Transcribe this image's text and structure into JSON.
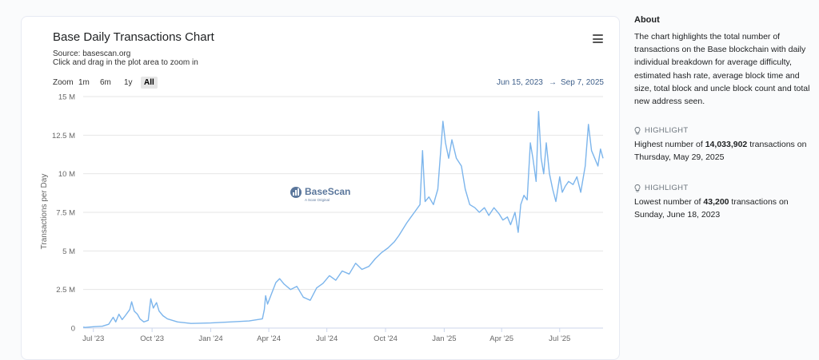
{
  "chart_data": {
    "type": "line",
    "title": "Base Daily Transactions Chart",
    "subtitle_source": "Source: basescan.org",
    "subtitle_hint": "Click and drag in the plot area to zoom in",
    "ylabel": "Transactions per Day",
    "xlabel": "",
    "ylim": [
      0,
      15000000
    ],
    "y_ticks": [
      {
        "value": 0,
        "label": "0"
      },
      {
        "value": 2500000,
        "label": "2.5 M"
      },
      {
        "value": 5000000,
        "label": "5 M"
      },
      {
        "value": 7500000,
        "label": "7.5 M"
      },
      {
        "value": 10000000,
        "label": "10 M"
      },
      {
        "value": 12500000,
        "label": "12.5 M"
      },
      {
        "value": 15000000,
        "label": "15 M"
      }
    ],
    "xlim": [
      "2023-06-15",
      "2025-09-07"
    ],
    "x_ticks": [
      {
        "date": "2023-07-01",
        "label": "Jul '23"
      },
      {
        "date": "2023-10-01",
        "label": "Oct '23"
      },
      {
        "date": "2024-01-01",
        "label": "Jan '24"
      },
      {
        "date": "2024-04-01",
        "label": "Apr '24"
      },
      {
        "date": "2024-07-01",
        "label": "Jul '24"
      },
      {
        "date": "2024-10-01",
        "label": "Oct '24"
      },
      {
        "date": "2025-01-01",
        "label": "Jan '25"
      },
      {
        "date": "2025-04-01",
        "label": "Apr '25"
      },
      {
        "date": "2025-07-01",
        "label": "Jul '25"
      }
    ],
    "grid": true,
    "legend": "none",
    "series": [
      {
        "color": "#7cb5ec",
        "points": [
          [
            "2023-06-15",
            60000
          ],
          [
            "2023-06-18",
            43200
          ],
          [
            "2023-07-01",
            90000
          ],
          [
            "2023-07-15",
            120000
          ],
          [
            "2023-07-25",
            250000
          ],
          [
            "2023-08-01",
            700000
          ],
          [
            "2023-08-05",
            400000
          ],
          [
            "2023-08-10",
            900000
          ],
          [
            "2023-08-15",
            550000
          ],
          [
            "2023-08-20",
            800000
          ],
          [
            "2023-08-27",
            1200000
          ],
          [
            "2023-08-30",
            1700000
          ],
          [
            "2023-09-03",
            1100000
          ],
          [
            "2023-09-08",
            900000
          ],
          [
            "2023-09-12",
            600000
          ],
          [
            "2023-09-18",
            400000
          ],
          [
            "2023-09-25",
            500000
          ],
          [
            "2023-09-29",
            1900000
          ],
          [
            "2023-10-03",
            1300000
          ],
          [
            "2023-10-08",
            1650000
          ],
          [
            "2023-10-12",
            1100000
          ],
          [
            "2023-10-18",
            800000
          ],
          [
            "2023-10-25",
            600000
          ],
          [
            "2023-11-10",
            400000
          ],
          [
            "2023-12-01",
            300000
          ],
          [
            "2024-01-01",
            330000
          ],
          [
            "2024-02-01",
            400000
          ],
          [
            "2024-03-01",
            460000
          ],
          [
            "2024-03-22",
            600000
          ],
          [
            "2024-03-25",
            1200000
          ],
          [
            "2024-03-27",
            2100000
          ],
          [
            "2024-03-30",
            1550000
          ],
          [
            "2024-04-05",
            2200000
          ],
          [
            "2024-04-12",
            2950000
          ],
          [
            "2024-04-18",
            3200000
          ],
          [
            "2024-04-25",
            2850000
          ],
          [
            "2024-05-05",
            2500000
          ],
          [
            "2024-05-15",
            2700000
          ],
          [
            "2024-05-25",
            2000000
          ],
          [
            "2024-06-05",
            1800000
          ],
          [
            "2024-06-15",
            2600000
          ],
          [
            "2024-06-25",
            2900000
          ],
          [
            "2024-07-05",
            3400000
          ],
          [
            "2024-07-15",
            3100000
          ],
          [
            "2024-07-25",
            3700000
          ],
          [
            "2024-08-05",
            3500000
          ],
          [
            "2024-08-15",
            4200000
          ],
          [
            "2024-08-25",
            3800000
          ],
          [
            "2024-09-05",
            4000000
          ],
          [
            "2024-09-15",
            4500000
          ],
          [
            "2024-09-25",
            4900000
          ],
          [
            "2024-10-05",
            5200000
          ],
          [
            "2024-10-15",
            5600000
          ],
          [
            "2024-10-22",
            6000000
          ],
          [
            "2024-10-28",
            6400000
          ],
          [
            "2024-11-03",
            6800000
          ],
          [
            "2024-11-10",
            7200000
          ],
          [
            "2024-11-17",
            7600000
          ],
          [
            "2024-11-24",
            8000000
          ],
          [
            "2024-11-28",
            11500000
          ],
          [
            "2024-12-02",
            8200000
          ],
          [
            "2024-12-08",
            8500000
          ],
          [
            "2024-12-15",
            8000000
          ],
          [
            "2024-12-22",
            9000000
          ],
          [
            "2024-12-30",
            13400000
          ],
          [
            "2025-01-03",
            12000000
          ],
          [
            "2025-01-08",
            11000000
          ],
          [
            "2025-01-13",
            12200000
          ],
          [
            "2025-01-20",
            11000000
          ],
          [
            "2025-01-28",
            10500000
          ],
          [
            "2025-02-03",
            9000000
          ],
          [
            "2025-02-10",
            8000000
          ],
          [
            "2025-02-18",
            7800000
          ],
          [
            "2025-02-25",
            7500000
          ],
          [
            "2025-03-05",
            7800000
          ],
          [
            "2025-03-12",
            7300000
          ],
          [
            "2025-03-20",
            7800000
          ],
          [
            "2025-03-28",
            7400000
          ],
          [
            "2025-04-03",
            7000000
          ],
          [
            "2025-04-10",
            7200000
          ],
          [
            "2025-04-15",
            6700000
          ],
          [
            "2025-04-22",
            7500000
          ],
          [
            "2025-04-27",
            6200000
          ],
          [
            "2025-05-01",
            8000000
          ],
          [
            "2025-05-06",
            8600000
          ],
          [
            "2025-05-11",
            8300000
          ],
          [
            "2025-05-16",
            12000000
          ],
          [
            "2025-05-20",
            11000000
          ],
          [
            "2025-05-25",
            9500000
          ],
          [
            "2025-05-29",
            14033902
          ],
          [
            "2025-06-02",
            11000000
          ],
          [
            "2025-06-06",
            10000000
          ],
          [
            "2025-06-10",
            12000000
          ],
          [
            "2025-06-15",
            10000000
          ],
          [
            "2025-06-20",
            9000000
          ],
          [
            "2025-06-25",
            8200000
          ],
          [
            "2025-07-01",
            9800000
          ],
          [
            "2025-07-05",
            8800000
          ],
          [
            "2025-07-10",
            9200000
          ],
          [
            "2025-07-15",
            9500000
          ],
          [
            "2025-07-22",
            9300000
          ],
          [
            "2025-07-28",
            9800000
          ],
          [
            "2025-08-03",
            8800000
          ],
          [
            "2025-08-10",
            10500000
          ],
          [
            "2025-08-15",
            13200000
          ],
          [
            "2025-08-20",
            11500000
          ],
          [
            "2025-08-25",
            11000000
          ],
          [
            "2025-08-30",
            10500000
          ],
          [
            "2025-09-03",
            11600000
          ],
          [
            "2025-09-07",
            11000000
          ]
        ]
      }
    ]
  },
  "chart_ui": {
    "menu_icon": "hamburger-menu-icon",
    "zoom_label": "Zoom",
    "zoom_buttons": [
      "1m",
      "6m",
      "1y",
      "All"
    ],
    "zoom_selected": "All",
    "range_from": "Jun 15, 2023",
    "range_arrow": "→",
    "range_to": "Sep 7, 2025",
    "watermark_name": "BaseScan",
    "watermark_tagline": "A Scan Original"
  },
  "about": {
    "title": "About",
    "text": "The chart highlights the total number of transactions on the Base blockchain with daily individual breakdown for average difficulty, estimated hash rate, average block time and size, total block and uncle block count and total new address seen."
  },
  "highlights": [
    {
      "label": "HIGHLIGHT",
      "prefix": "Highest number of ",
      "value": "14,033,902",
      "suffix": " transactions on",
      "date": "Thursday, May 29, 2025",
      "icon": "lightbulb-icon"
    },
    {
      "label": "HIGHLIGHT",
      "prefix": "Lowest number of ",
      "value": "43,200",
      "suffix": " transactions on",
      "date": "Sunday, June 18, 2023",
      "icon": "lightbulb-icon"
    }
  ],
  "colors": {
    "line": "#7cb5ec",
    "grid": "#e6e6e6",
    "axis_text": "#666666",
    "range_text": "#3e5f8a",
    "watermark": "#3e5f8a"
  }
}
